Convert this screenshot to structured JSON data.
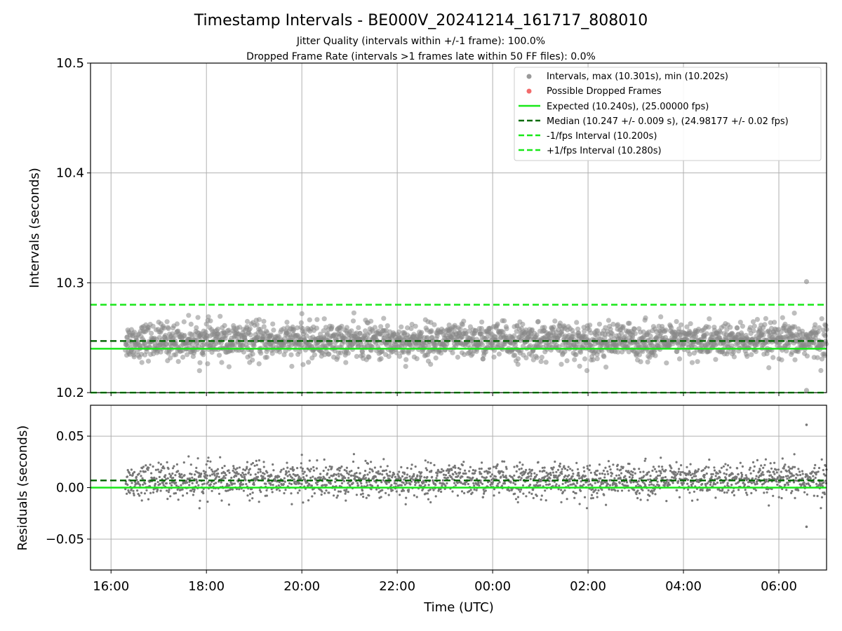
{
  "chart_data": [
    {
      "type": "scatter",
      "title": "Timestamp Intervals - BE000V_20241214_161717_808010",
      "subtitle": [
        "Jitter Quality (intervals within +/-1 frame): 100.0%",
        "Dropped Frame Rate (intervals >1 frames late within 50 FF files): 0.0%"
      ],
      "xlabel": "",
      "ylabel": "Intervals (seconds)",
      "ylim": [
        10.2,
        10.5
      ],
      "yticks": [
        "10.2",
        "10.3",
        "10.4",
        "10.5"
      ],
      "xlim_hours": [
        15.57,
        31.0
      ],
      "x_start_hours": 16.3,
      "x_end_hours": 31.0,
      "x_extremes_hours": 30.58,
      "grid": true,
      "legend_position": "top-right",
      "legend": [
        {
          "label": "Intervals, max (10.301s), min (10.202s)",
          "kind": "marker",
          "color": "#999999"
        },
        {
          "label": "Possible Dropped Frames",
          "kind": "marker",
          "color": "#f26b6b"
        },
        {
          "label": "Expected (10.240s), (25.00000 fps)",
          "kind": "line",
          "color": "#18e818"
        },
        {
          "label": "Median (10.247 +/- 0.009 s), (24.98177 +/- 0.02 fps)",
          "kind": "dashed",
          "color": "#0a6b0a"
        },
        {
          "label": "-1/fps Interval (10.200s)",
          "kind": "dashed",
          "color": "#18e818"
        },
        {
          "label": "+1/fps Interval (10.280s)",
          "kind": "dashed",
          "color": "#18e818"
        }
      ],
      "series": [
        {
          "name": "Intervals",
          "mean": 10.247,
          "std": 0.009,
          "min": 10.202,
          "max": 10.301,
          "color": "#888888"
        },
        {
          "name": "Possible Dropped Frames",
          "count": 0,
          "color": "#f26b6b"
        }
      ],
      "reference_lines": [
        {
          "name": "Expected",
          "y": 10.24,
          "style": "solid",
          "color": "#18e818"
        },
        {
          "name": "Median",
          "y": 10.247,
          "style": "dashed",
          "color": "#0a6b0a"
        },
        {
          "name": "-1/fps Interval",
          "y": 10.2,
          "style": "dashed",
          "color": "#18e818"
        },
        {
          "name": "+1/fps Interval",
          "y": 10.28,
          "style": "dashed",
          "color": "#18e818"
        }
      ]
    },
    {
      "type": "scatter",
      "title": "",
      "xlabel": "Time (UTC)",
      "ylabel": "Residuals (seconds)",
      "ylim": [
        -0.08,
        0.08
      ],
      "yticks": [
        "0.05",
        "0.00",
        "−0.05"
      ],
      "ytick_values": [
        0.05,
        0.0,
        -0.05
      ],
      "xticks": [
        "16:00",
        "18:00",
        "20:00",
        "22:00",
        "00:00",
        "02:00",
        "04:00",
        "06:00"
      ],
      "xtick_hours": [
        16,
        18,
        20,
        22,
        24,
        26,
        28,
        30
      ],
      "grid": true,
      "series": [
        {
          "name": "Residuals",
          "mean": 0.007,
          "std": 0.009,
          "min": -0.038,
          "max": 0.061,
          "color": "#777777"
        }
      ],
      "reference_lines": [
        {
          "name": "Expected",
          "y": 0.0,
          "style": "solid",
          "color": "#18e818"
        },
        {
          "name": "Median",
          "y": 0.007,
          "style": "dashed",
          "color": "#0a6b0a"
        }
      ]
    }
  ]
}
